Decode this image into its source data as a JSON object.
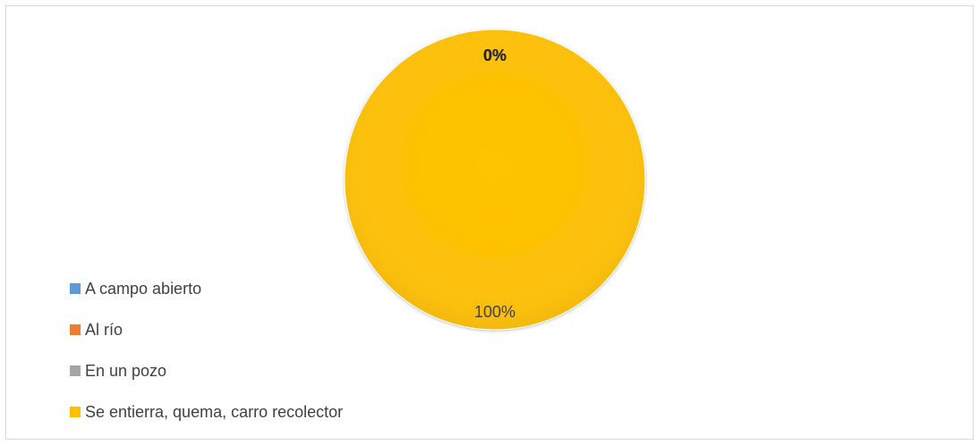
{
  "chart_data": {
    "type": "pie",
    "title": "",
    "categories": [
      "A campo abierto",
      "Al río",
      "En un pozo",
      "Se entierra, quema, carro recolector"
    ],
    "values": [
      0,
      0,
      0,
      100
    ],
    "data_labels": [
      "0%",
      "0%",
      "0%",
      "100%"
    ],
    "legend_position": "left",
    "colors": [
      "#5b9bd5",
      "#ed7d31",
      "#a5a5a5",
      "#ffc000"
    ]
  }
}
